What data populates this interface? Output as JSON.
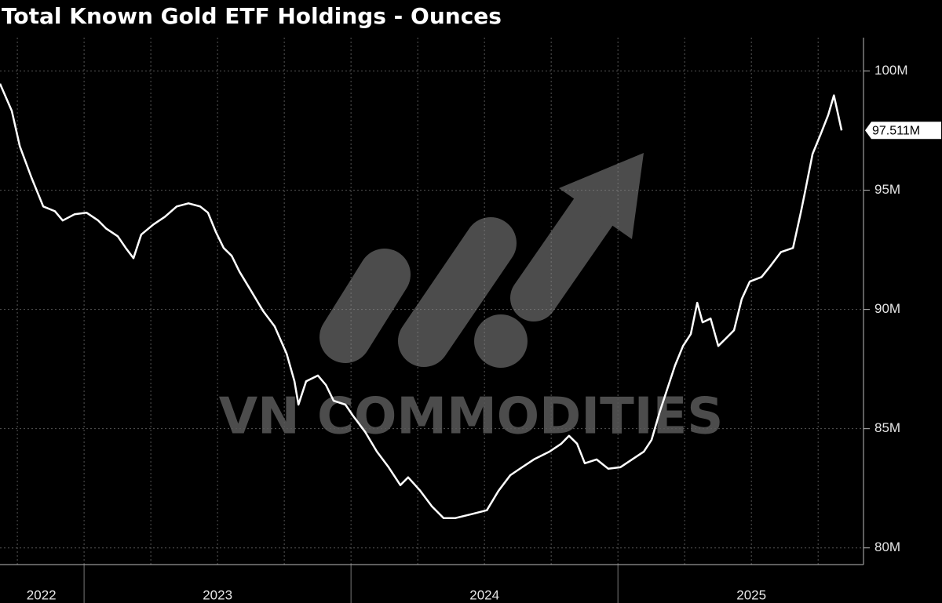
{
  "chart_data": {
    "type": "line",
    "title": "Total Known Gold ETF Holdings - Ounces",
    "watermark": "VN COMMODITIES",
    "x": [
      2022.685,
      2022.729,
      2022.759,
      2022.803,
      2022.847,
      2022.891,
      2022.92,
      2022.964,
      2023.009,
      2023.053,
      2023.082,
      2023.126,
      2023.156,
      2023.185,
      2023.214,
      2023.259,
      2023.303,
      2023.347,
      2023.391,
      2023.435,
      2023.464,
      2023.494,
      2023.523,
      2023.553,
      2023.582,
      2023.626,
      2023.67,
      2023.714,
      2023.759,
      2023.788,
      2023.803,
      2023.832,
      2023.876,
      2023.906,
      2023.935,
      2023.979,
      2024.009,
      2024.053,
      2024.097,
      2024.141,
      2024.185,
      2024.214,
      2024.259,
      2024.303,
      2024.347,
      2024.391,
      2024.45,
      2024.509,
      2024.553,
      2024.597,
      2024.641,
      2024.685,
      2024.744,
      2024.788,
      2024.817,
      2024.847,
      2024.876,
      2024.92,
      2024.964,
      2025.009,
      2025.053,
      2025.097,
      2025.126,
      2025.156,
      2025.185,
      2025.214,
      2025.244,
      2025.273,
      2025.297,
      2025.317,
      2025.347,
      2025.376,
      2025.406,
      2025.435,
      2025.464,
      2025.494,
      2025.538,
      2025.567,
      2025.611,
      2025.656,
      2025.685,
      2025.7,
      2025.729,
      2025.759,
      2025.788,
      2025.809,
      2025.838
    ],
    "series": [
      {
        "name": "Total Known Gold ETF Holdings",
        "color": "#ffffff",
        "values": [
          99.47,
          98.33,
          96.85,
          95.53,
          94.32,
          94.12,
          93.73,
          93.99,
          94.06,
          93.73,
          93.4,
          93.07,
          92.58,
          92.15,
          93.14,
          93.56,
          93.89,
          94.32,
          94.45,
          94.32,
          94.06,
          93.24,
          92.58,
          92.25,
          91.59,
          90.77,
          89.95,
          89.29,
          88.14,
          86.99,
          86.01,
          86.99,
          87.23,
          86.83,
          86.17,
          86.01,
          85.52,
          84.86,
          84.04,
          83.38,
          82.63,
          82.96,
          82.4,
          81.74,
          81.25,
          81.25,
          81.41,
          81.58,
          82.4,
          83.05,
          83.38,
          83.71,
          84.04,
          84.37,
          84.7,
          84.37,
          83.55,
          83.71,
          83.32,
          83.38,
          83.71,
          84.04,
          84.53,
          85.68,
          86.67,
          87.65,
          88.47,
          88.97,
          90.28,
          89.46,
          89.62,
          88.47,
          88.8,
          89.13,
          90.44,
          91.17,
          91.36,
          91.76,
          92.41,
          92.58,
          94.06,
          94.88,
          96.52,
          97.34,
          98.16,
          98.98,
          97.511
        ],
        "last_value_label": "97.511M"
      }
    ],
    "xlim": [
      2022.685,
      2025.92
    ],
    "xticks": [
      {
        "value": 2022.84,
        "label": "2022"
      },
      {
        "value": 2023.5,
        "label": "2023"
      },
      {
        "value": 2024.5,
        "label": "2024"
      },
      {
        "value": 2025.5,
        "label": "2025"
      }
    ],
    "xgrid": [
      2022.75,
      2023,
      2023.25,
      2023.5,
      2023.75,
      2024,
      2024.25,
      2024.5,
      2024.75,
      2025,
      2025.25,
      2025.5,
      2025.75
    ],
    "ylim": [
      79.3,
      101.4
    ],
    "yticks": [
      {
        "value": 80,
        "label": "80M"
      },
      {
        "value": 85,
        "label": "85M"
      },
      {
        "value": 90,
        "label": "90M"
      },
      {
        "value": 95,
        "label": "95M"
      },
      {
        "value": 100,
        "label": "100M"
      }
    ],
    "grid": true,
    "y_axis_side": "right"
  }
}
